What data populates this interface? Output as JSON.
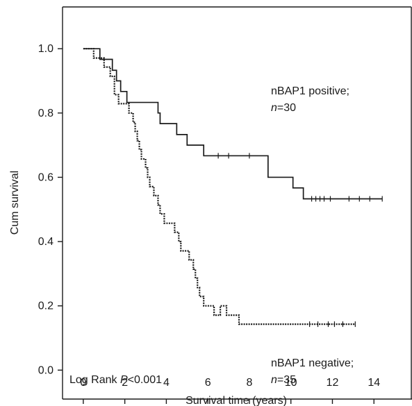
{
  "chart_data": {
    "type": "line",
    "title": "",
    "xlabel": "Survival time (years)",
    "ylabel": "Cum survival",
    "xlim": [
      -1,
      15.8
    ],
    "ylim": [
      -0.09,
      1.13
    ],
    "x_ticks": [
      0,
      2,
      4,
      6,
      8,
      10,
      12,
      14
    ],
    "y_ticks": [
      0.0,
      0.2,
      0.4,
      0.6,
      0.8,
      1.0
    ],
    "x_tick_labels": [
      "0",
      "2",
      "4",
      "6",
      "8",
      "10",
      "12",
      "14"
    ],
    "y_tick_labels": [
      "0.0",
      "0.2",
      "0.4",
      "0.6",
      "0.8",
      "1.0"
    ],
    "grid": false,
    "series": [
      {
        "name": "nBAP1 positive;",
        "n_label": "n",
        "n_value": "=30",
        "line_style": "solid",
        "color": "#1a1a1a",
        "steps": [
          [
            0,
            1.0
          ],
          [
            0.5,
            1.0
          ],
          [
            0.8,
            0.967
          ],
          [
            1.2,
            0.967
          ],
          [
            1.4,
            0.933
          ],
          [
            1.6,
            0.9
          ],
          [
            1.8,
            0.867
          ],
          [
            2.1,
            0.833
          ],
          [
            3.6,
            0.8
          ],
          [
            3.7,
            0.767
          ],
          [
            4.5,
            0.733
          ],
          [
            5.0,
            0.7
          ],
          [
            5.8,
            0.667
          ],
          [
            8.9,
            0.6
          ],
          [
            9.9,
            0.6
          ],
          [
            10.1,
            0.567
          ],
          [
            10.6,
            0.533
          ],
          [
            14.4,
            0.533
          ]
        ],
        "censored_x": [
          6.5,
          7.0,
          8.0,
          11.0,
          11.2,
          11.4,
          11.6,
          11.9,
          12.8,
          13.3,
          13.8,
          14.4
        ]
      },
      {
        "name": "nBAP1 negative;",
        "n_label": "n",
        "n_value": "=35",
        "line_style": "dotted",
        "color": "#1a1a1a",
        "steps": [
          [
            0,
            1.0
          ],
          [
            0.5,
            0.971
          ],
          [
            1.0,
            0.943
          ],
          [
            1.3,
            0.914
          ],
          [
            1.5,
            0.857
          ],
          [
            1.7,
            0.829
          ],
          [
            2.2,
            0.8
          ],
          [
            2.4,
            0.771
          ],
          [
            2.5,
            0.743
          ],
          [
            2.6,
            0.714
          ],
          [
            2.7,
            0.686
          ],
          [
            2.8,
            0.657
          ],
          [
            3.0,
            0.629
          ],
          [
            3.1,
            0.6
          ],
          [
            3.2,
            0.571
          ],
          [
            3.4,
            0.543
          ],
          [
            3.6,
            0.514
          ],
          [
            3.7,
            0.486
          ],
          [
            3.9,
            0.457
          ],
          [
            4.4,
            0.429
          ],
          [
            4.6,
            0.4
          ],
          [
            4.7,
            0.371
          ],
          [
            5.1,
            0.343
          ],
          [
            5.3,
            0.314
          ],
          [
            5.4,
            0.286
          ],
          [
            5.5,
            0.257
          ],
          [
            5.6,
            0.229
          ],
          [
            5.8,
            0.2
          ],
          [
            6.3,
            0.171
          ],
          [
            6.6,
            0.2
          ],
          [
            6.8,
            0.2
          ],
          [
            6.9,
            0.171
          ],
          [
            7.5,
            0.143
          ],
          [
            13.1,
            0.143
          ]
        ],
        "censored_x": [
          10.9,
          11.3,
          11.8,
          12.1,
          12.5,
          13.1
        ]
      }
    ],
    "annotation_prefix": "Log Rank ",
    "annotation_p": "P",
    "annotation_suffix": "<0.001"
  }
}
